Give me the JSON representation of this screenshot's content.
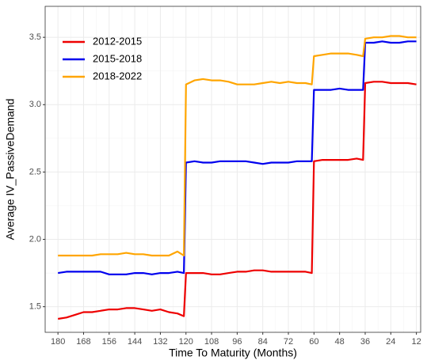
{
  "chart_data": {
    "type": "line",
    "x_label": "Time To Maturity (Months)",
    "y_label": "Average IV_PassiveDemand",
    "x": [
      180,
      176,
      172,
      168,
      164,
      160,
      156,
      152,
      148,
      144,
      140,
      136,
      132,
      128,
      124,
      121,
      120,
      116,
      112,
      108,
      104,
      100,
      96,
      92,
      88,
      84,
      80,
      76,
      72,
      68,
      64,
      61,
      60,
      56,
      52,
      48,
      44,
      40,
      37,
      36,
      32,
      28,
      24,
      20,
      16,
      12
    ],
    "series": [
      {
        "name": "2012-2015",
        "color": "#ee0000",
        "values": [
          1.41,
          1.42,
          1.44,
          1.46,
          1.46,
          1.47,
          1.48,
          1.48,
          1.49,
          1.49,
          1.48,
          1.47,
          1.48,
          1.46,
          1.45,
          1.43,
          1.75,
          1.75,
          1.75,
          1.74,
          1.74,
          1.75,
          1.76,
          1.76,
          1.77,
          1.77,
          1.76,
          1.76,
          1.76,
          1.76,
          1.76,
          1.75,
          2.58,
          2.59,
          2.59,
          2.59,
          2.59,
          2.6,
          2.59,
          3.16,
          3.17,
          3.17,
          3.16,
          3.16,
          3.16,
          3.15
        ]
      },
      {
        "name": "2015-2018",
        "color": "#0000ee",
        "values": [
          1.75,
          1.76,
          1.76,
          1.76,
          1.76,
          1.76,
          1.74,
          1.74,
          1.74,
          1.75,
          1.75,
          1.74,
          1.75,
          1.75,
          1.76,
          1.75,
          2.57,
          2.58,
          2.57,
          2.57,
          2.58,
          2.58,
          2.58,
          2.58,
          2.57,
          2.56,
          2.57,
          2.57,
          2.57,
          2.58,
          2.58,
          2.58,
          3.11,
          3.11,
          3.11,
          3.12,
          3.11,
          3.11,
          3.11,
          3.46,
          3.46,
          3.47,
          3.46,
          3.46,
          3.47,
          3.47
        ]
      },
      {
        "name": "2018-2022",
        "color": "#ffa500",
        "values": [
          1.88,
          1.88,
          1.88,
          1.88,
          1.88,
          1.89,
          1.89,
          1.89,
          1.9,
          1.89,
          1.89,
          1.88,
          1.88,
          1.88,
          1.91,
          1.88,
          3.15,
          3.18,
          3.19,
          3.18,
          3.18,
          3.17,
          3.15,
          3.15,
          3.15,
          3.16,
          3.17,
          3.16,
          3.17,
          3.16,
          3.16,
          3.15,
          3.36,
          3.37,
          3.38,
          3.38,
          3.38,
          3.37,
          3.36,
          3.49,
          3.5,
          3.5,
          3.51,
          3.51,
          3.5,
          3.5
        ]
      }
    ],
    "xlim": [
      186,
      10
    ],
    "xticks": [
      180,
      168,
      156,
      144,
      132,
      120,
      108,
      96,
      84,
      72,
      60,
      48,
      36,
      24,
      12
    ],
    "ylim": [
      1.31,
      3.73
    ],
    "yticks": [
      1.5,
      {
        "value": 2,
        "label": "2.0"
      },
      2.5,
      {
        "value": 3,
        "label": "3.0"
      },
      3.5
    ],
    "grid": true,
    "minor_grid": true,
    "legend_position": "top-left"
  }
}
